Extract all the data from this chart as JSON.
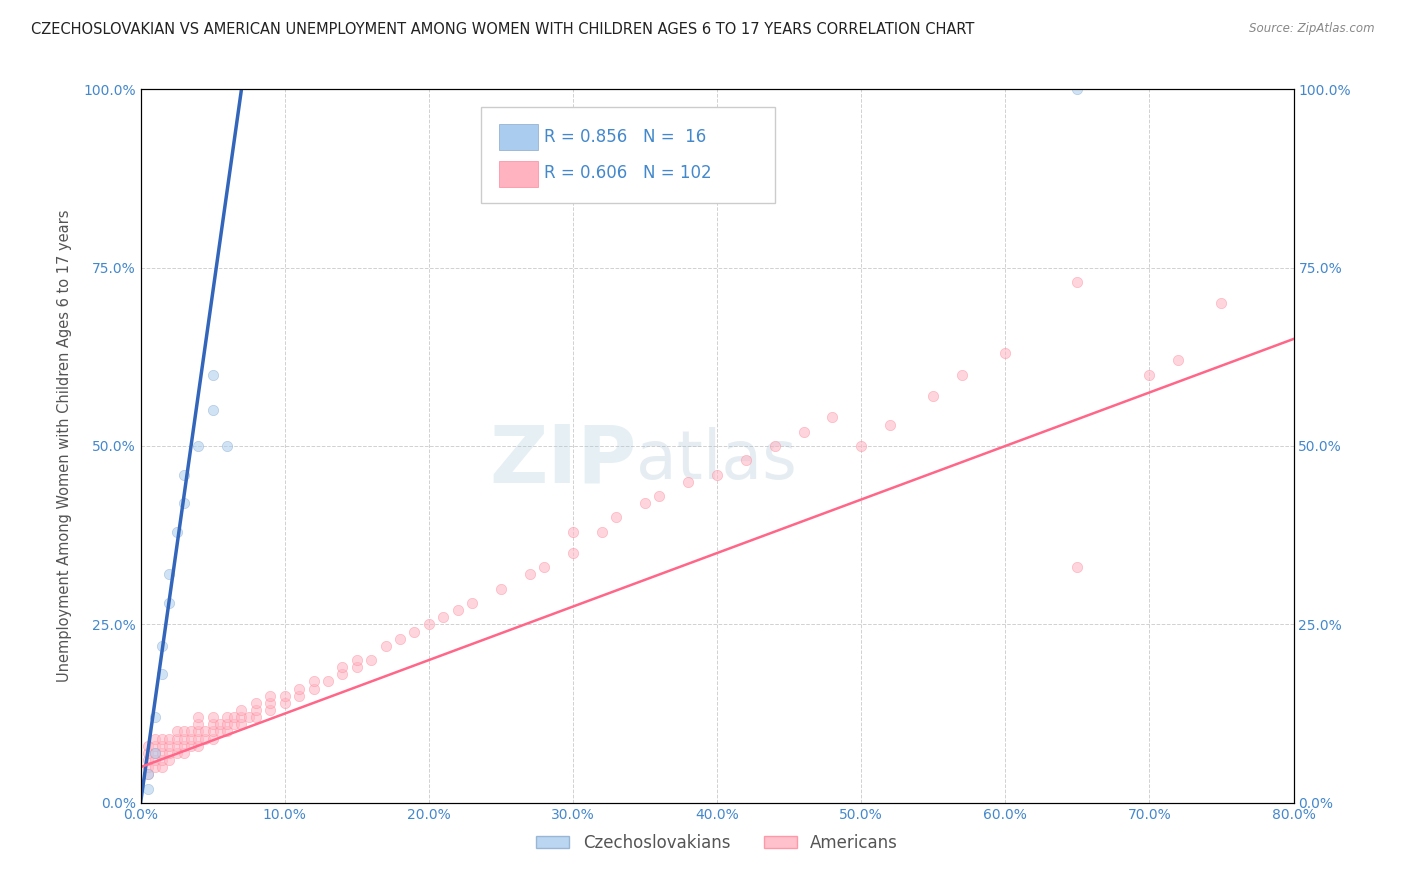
{
  "title": "CZECHOSLOVAKIAN VS AMERICAN UNEMPLOYMENT AMONG WOMEN WITH CHILDREN AGES 6 TO 17 YEARS CORRELATION CHART",
  "source": "Source: ZipAtlas.com",
  "ylabel": "Unemployment Among Women with Children Ages 6 to 17 years",
  "xlim": [
    0.0,
    0.8
  ],
  "ylim": [
    0.0,
    1.0
  ],
  "xticks": [
    0.0,
    0.1,
    0.2,
    0.3,
    0.4,
    0.5,
    0.6,
    0.7,
    0.8
  ],
  "xticklabels": [
    "0.0%",
    "10.0%",
    "20.0%",
    "30.0%",
    "40.0%",
    "50.0%",
    "60.0%",
    "70.0%",
    "80.0%"
  ],
  "yticks": [
    0.0,
    0.25,
    0.5,
    0.75,
    1.0
  ],
  "yticklabels": [
    "0.0%",
    "25.0%",
    "50.0%",
    "75.0%",
    "100.0%"
  ],
  "blue_fill": "#AACCEE",
  "blue_edge": "#88AACC",
  "pink_fill": "#FFB3C1",
  "pink_edge": "#FF8899",
  "blue_line_color": "#3366BB",
  "pink_line_color": "#FF6688",
  "R_blue": 0.856,
  "N_blue": 16,
  "R_pink": 0.606,
  "N_pink": 102,
  "legend_label_blue": "Czechoslovakians",
  "legend_label_pink": "Americans",
  "watermark_zip": "ZIP",
  "watermark_atlas": "atlas",
  "background_color": "#FFFFFF",
  "grid_color": "#CCCCCC",
  "title_color": "#222222",
  "axis_label_color": "#555555",
  "tick_label_color": "#4488CC",
  "legend_R_color": "#4488CC",
  "dot_size": 55,
  "dot_alpha": 0.55,
  "blue_x": [
    0.005,
    0.005,
    0.01,
    0.01,
    0.015,
    0.015,
    0.02,
    0.02,
    0.025,
    0.03,
    0.03,
    0.04,
    0.05,
    0.05,
    0.06,
    0.65
  ],
  "blue_y": [
    0.02,
    0.04,
    0.07,
    0.12,
    0.18,
    0.22,
    0.28,
    0.32,
    0.38,
    0.42,
    0.46,
    0.5,
    0.55,
    0.6,
    0.5,
    1.0
  ],
  "blue_line_x": [
    0.0,
    0.07
  ],
  "blue_line_y": [
    0.0,
    1.0
  ],
  "pink_line_x": [
    0.0,
    0.8
  ],
  "pink_line_y": [
    0.05,
    0.65
  ],
  "pink_x": [
    0.005,
    0.005,
    0.005,
    0.005,
    0.005,
    0.01,
    0.01,
    0.01,
    0.01,
    0.01,
    0.015,
    0.015,
    0.015,
    0.015,
    0.015,
    0.02,
    0.02,
    0.02,
    0.02,
    0.025,
    0.025,
    0.025,
    0.025,
    0.03,
    0.03,
    0.03,
    0.03,
    0.035,
    0.035,
    0.035,
    0.04,
    0.04,
    0.04,
    0.04,
    0.04,
    0.045,
    0.045,
    0.05,
    0.05,
    0.05,
    0.05,
    0.055,
    0.055,
    0.06,
    0.06,
    0.06,
    0.065,
    0.065,
    0.07,
    0.07,
    0.07,
    0.075,
    0.08,
    0.08,
    0.08,
    0.09,
    0.09,
    0.09,
    0.1,
    0.1,
    0.11,
    0.11,
    0.12,
    0.12,
    0.13,
    0.14,
    0.14,
    0.15,
    0.15,
    0.16,
    0.17,
    0.18,
    0.19,
    0.2,
    0.21,
    0.22,
    0.23,
    0.25,
    0.27,
    0.28,
    0.3,
    0.3,
    0.32,
    0.33,
    0.35,
    0.36,
    0.38,
    0.4,
    0.42,
    0.44,
    0.46,
    0.48,
    0.5,
    0.52,
    0.55,
    0.57,
    0.6,
    0.65,
    0.65,
    0.7,
    0.72,
    0.75
  ],
  "pink_y": [
    0.04,
    0.05,
    0.06,
    0.07,
    0.08,
    0.05,
    0.06,
    0.07,
    0.08,
    0.09,
    0.05,
    0.06,
    0.07,
    0.08,
    0.09,
    0.06,
    0.07,
    0.08,
    0.09,
    0.07,
    0.08,
    0.09,
    0.1,
    0.07,
    0.08,
    0.09,
    0.1,
    0.08,
    0.09,
    0.1,
    0.08,
    0.09,
    0.1,
    0.11,
    0.12,
    0.09,
    0.1,
    0.09,
    0.1,
    0.11,
    0.12,
    0.1,
    0.11,
    0.1,
    0.11,
    0.12,
    0.11,
    0.12,
    0.11,
    0.12,
    0.13,
    0.12,
    0.12,
    0.13,
    0.14,
    0.13,
    0.14,
    0.15,
    0.14,
    0.15,
    0.15,
    0.16,
    0.16,
    0.17,
    0.17,
    0.18,
    0.19,
    0.19,
    0.2,
    0.2,
    0.22,
    0.23,
    0.24,
    0.25,
    0.26,
    0.27,
    0.28,
    0.3,
    0.32,
    0.33,
    0.35,
    0.38,
    0.38,
    0.4,
    0.42,
    0.43,
    0.45,
    0.46,
    0.48,
    0.5,
    0.52,
    0.54,
    0.5,
    0.53,
    0.57,
    0.6,
    0.63,
    0.33,
    0.73,
    0.6,
    0.62,
    0.7
  ]
}
